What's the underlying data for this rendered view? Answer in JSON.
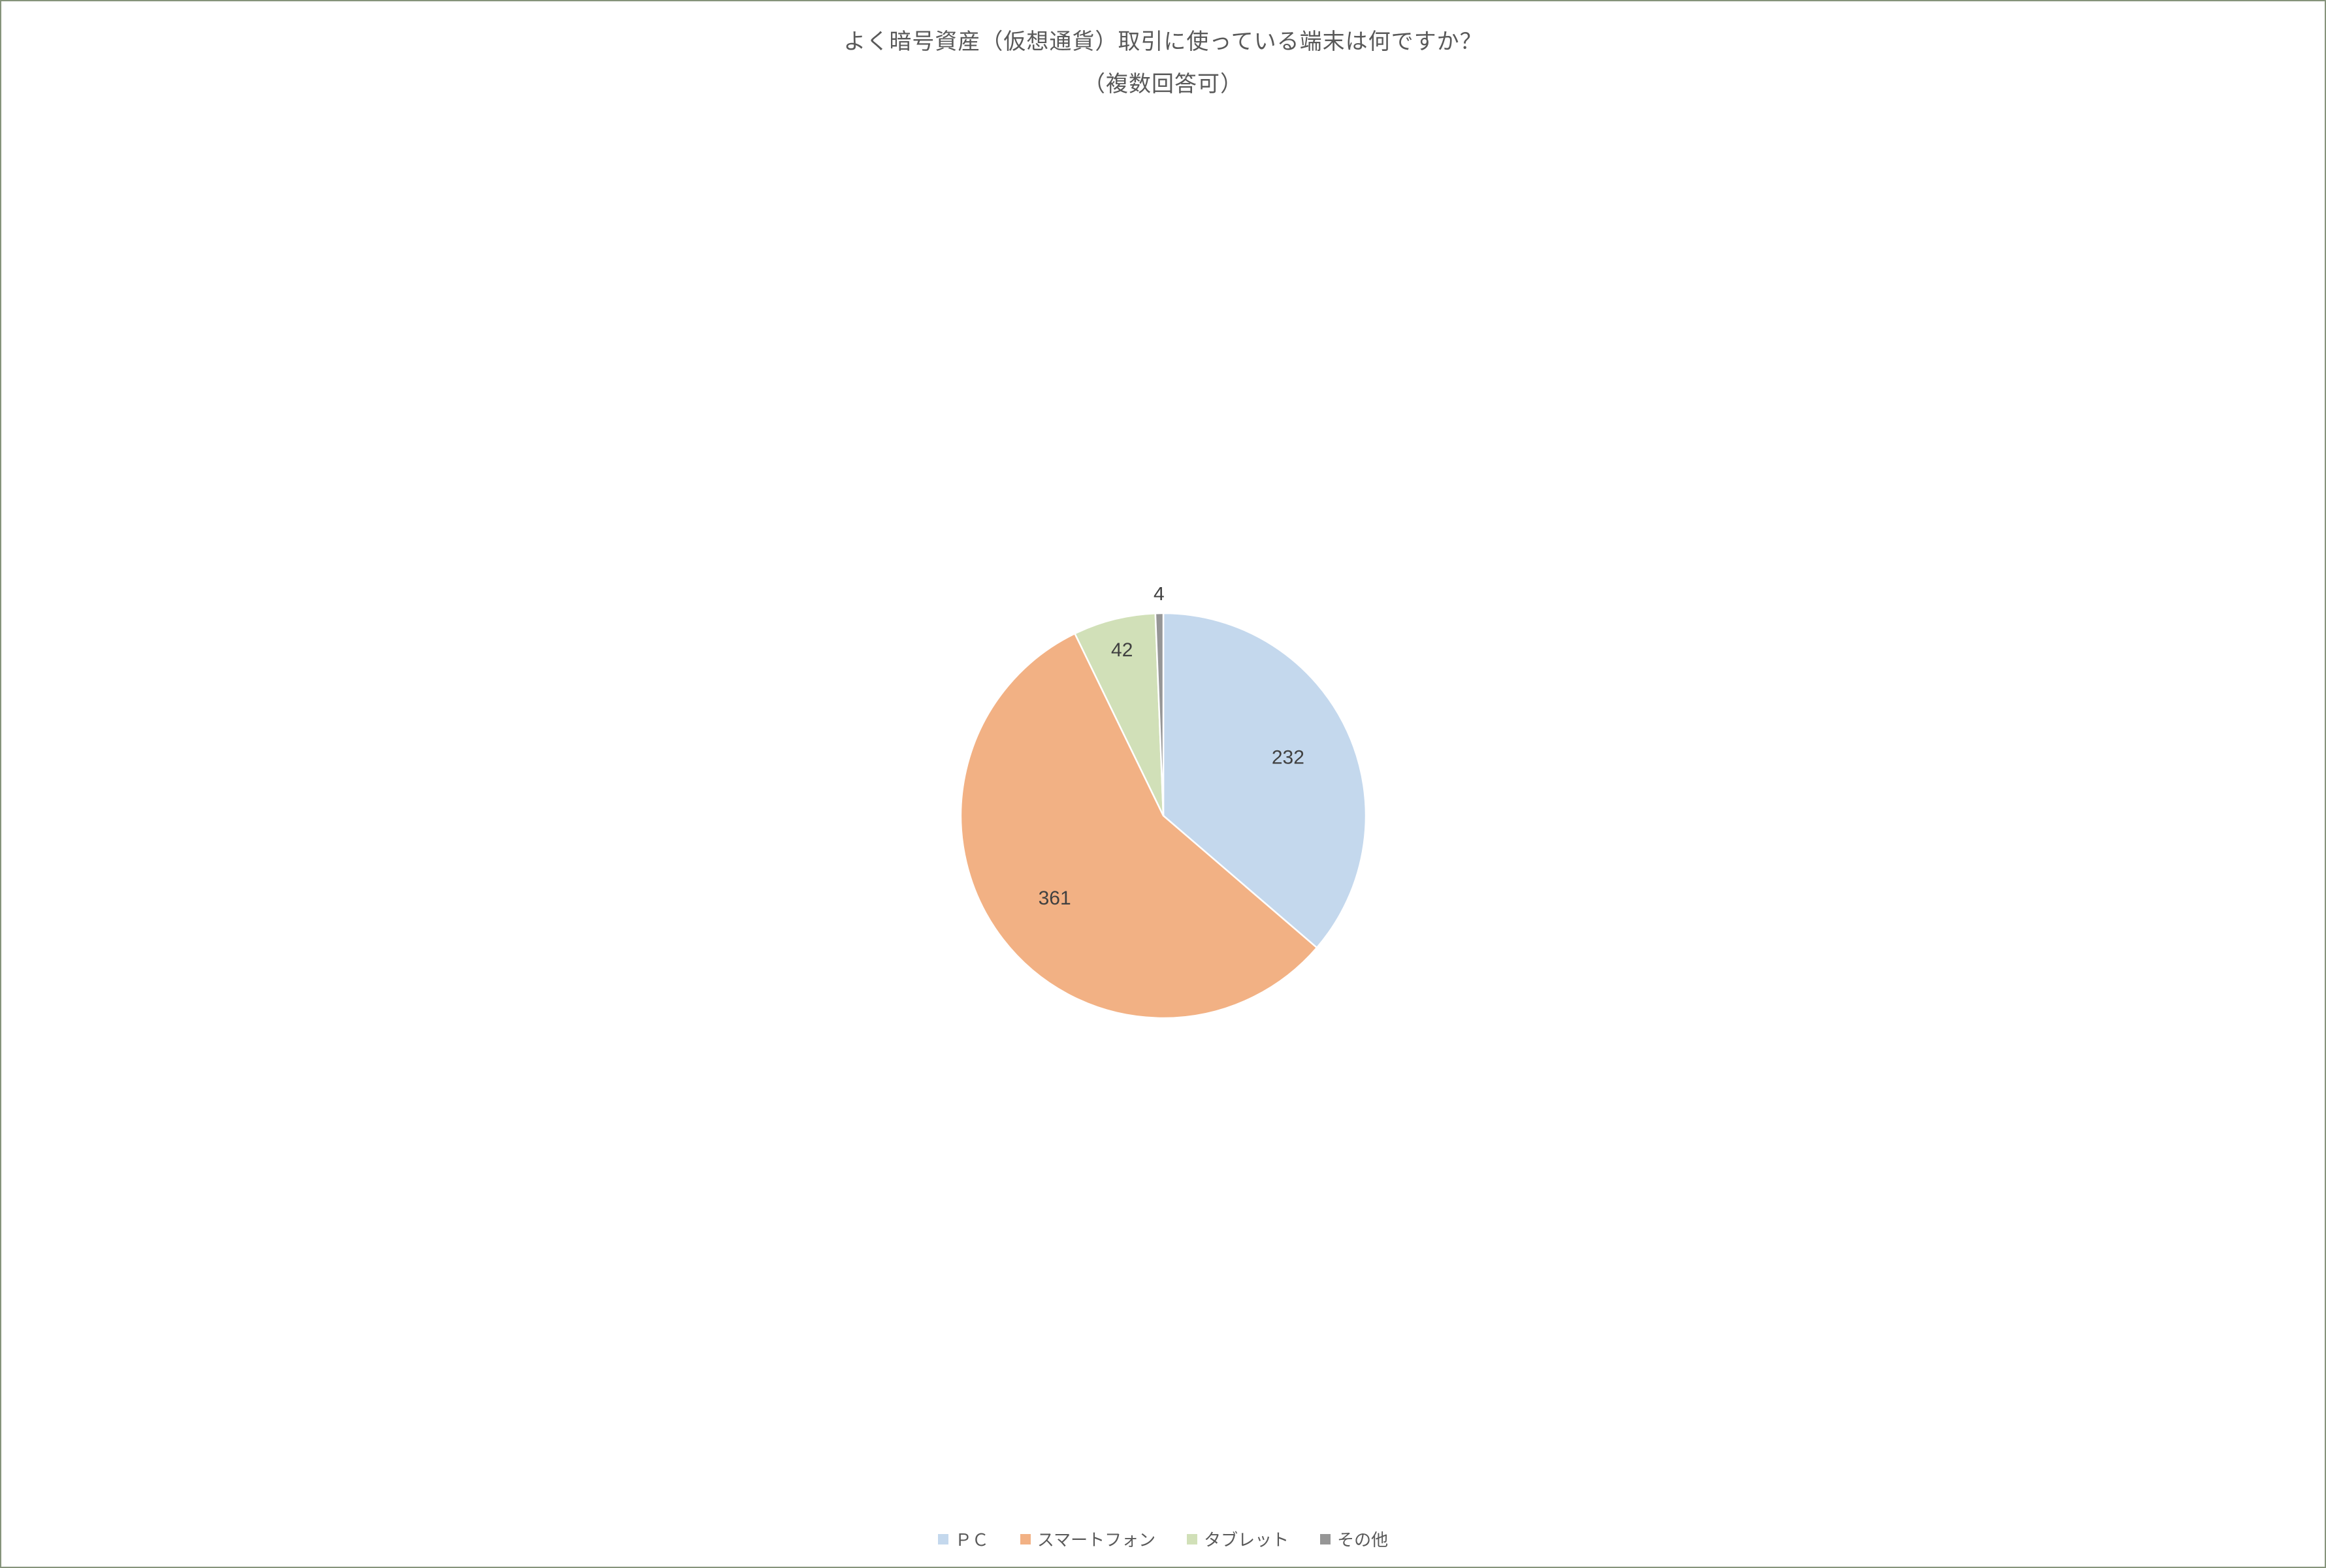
{
  "chart": {
    "type": "pie",
    "title_line1": "よく暗号資産（仮想通貨）取引に使っている端末は何ですか？",
    "title_line2": "（複数回答可）",
    "title_color": "#595959",
    "title_fontsize": 34,
    "border_color": "#86947b",
    "background_color": "#ffffff",
    "slices": [
      {
        "label": "ＰＣ",
        "value": 232,
        "color": "#c4d8ed"
      },
      {
        "label": "スマートフォン",
        "value": 361,
        "color": "#f2b184"
      },
      {
        "label": "タブレット",
        "value": 42,
        "color": "#d1e0b8"
      },
      {
        "label": "その他",
        "value": 4,
        "color": "#969696"
      }
    ],
    "data_label_color": "#404040",
    "data_label_fontsize": 30,
    "legend_fontsize": 26,
    "legend_color": "#595959",
    "start_angle_deg": 0,
    "clockwise": true,
    "pie_radius": 310,
    "label_radius": 210
  }
}
